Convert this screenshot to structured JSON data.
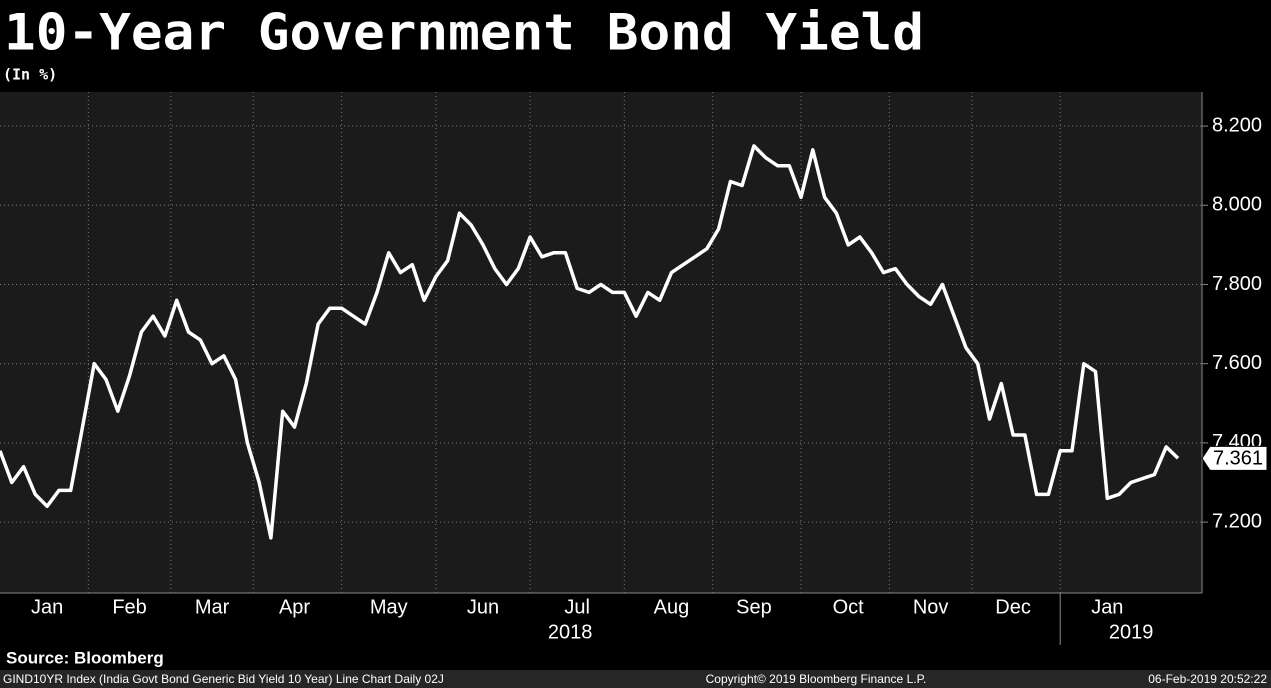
{
  "chart_data": {
    "type": "line",
    "title": "10-Year Government Bond Yield",
    "subtitle": "(In %)",
    "categories": [
      null,
      null,
      null,
      null,
      "Jan",
      null,
      null,
      null,
      null,
      null,
      null,
      "Feb",
      null,
      null,
      null,
      null,
      null,
      null,
      "Mar",
      null,
      null,
      null,
      null,
      null,
      null,
      "Apr",
      null,
      null,
      null,
      null,
      null,
      null,
      null,
      "May",
      null,
      null,
      null,
      null,
      null,
      null,
      null,
      "Jun",
      null,
      null,
      null,
      null,
      null,
      null,
      null,
      "Jul",
      null,
      null,
      null,
      null,
      null,
      null,
      null,
      "Aug",
      null,
      null,
      null,
      null,
      null,
      null,
      "Sep",
      null,
      null,
      null,
      null,
      null,
      null,
      null,
      "Oct",
      null,
      null,
      null,
      null,
      null,
      null,
      "Nov",
      null,
      null,
      null,
      null,
      null,
      null,
      "Dec",
      null,
      null,
      null,
      null,
      null,
      null,
      null,
      "Jan",
      null,
      null,
      null,
      null,
      null,
      null
    ],
    "years": [
      "2018",
      "2019"
    ],
    "values": [
      7.38,
      7.3,
      7.34,
      7.27,
      7.24,
      7.28,
      7.28,
      7.44,
      7.6,
      7.56,
      7.48,
      7.57,
      7.68,
      7.72,
      7.67,
      7.76,
      7.68,
      7.66,
      7.6,
      7.62,
      7.56,
      7.4,
      7.3,
      7.16,
      7.48,
      7.44,
      7.55,
      7.7,
      7.74,
      7.74,
      7.72,
      7.7,
      7.78,
      7.88,
      7.83,
      7.85,
      7.76,
      7.82,
      7.86,
      7.98,
      7.95,
      7.9,
      7.84,
      7.8,
      7.84,
      7.92,
      7.87,
      7.88,
      7.88,
      7.79,
      7.78,
      7.8,
      7.78,
      7.78,
      7.72,
      7.78,
      7.76,
      7.83,
      7.85,
      7.87,
      7.89,
      7.94,
      8.06,
      8.05,
      8.15,
      8.12,
      8.1,
      8.1,
      8.02,
      8.14,
      8.02,
      7.98,
      7.9,
      7.92,
      7.88,
      7.83,
      7.84,
      7.8,
      7.77,
      7.75,
      7.8,
      7.72,
      7.64,
      7.6,
      7.46,
      7.55,
      7.42,
      7.42,
      7.27,
      7.27,
      7.38,
      7.38,
      7.6,
      7.58,
      7.26,
      7.27,
      7.3,
      7.31,
      7.32,
      7.39,
      7.361
    ],
    "color": "#ffffff",
    "ylim": [
      7.021,
      8.286
    ],
    "yticks": [
      {
        "value": 7.2,
        "label": "7.200"
      },
      {
        "value": 7.4,
        "label": "7.400"
      },
      {
        "value": 7.6,
        "label": "7.600"
      },
      {
        "value": 7.8,
        "label": "7.800"
      },
      {
        "value": 8.0,
        "label": "8.000"
      },
      {
        "value": 8.2,
        "label": "8.200"
      }
    ],
    "grid": true,
    "source": "Source: Bloomberg",
    "footer": {
      "left": "GIND10YR Index (India Govt Bond Generic Bid Yield 10 Year) Line Chart  Daily 02J",
      "center": "Copyright© 2019 Bloomberg Finance L.P.",
      "right": "06-Feb-2019 20:52:22"
    }
  }
}
